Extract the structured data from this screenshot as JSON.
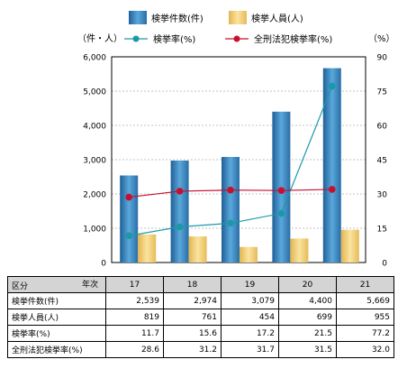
{
  "chart_data": {
    "type": "bar+line",
    "categories": [
      "17",
      "18",
      "19",
      "20",
      "21"
    ],
    "series": [
      {
        "name": "検挙件数(件)",
        "kind": "bar",
        "axis": "left",
        "color": "#3f8fc8",
        "values": [
          2539,
          2974,
          3079,
          4400,
          5669
        ]
      },
      {
        "name": "検挙人員(人)",
        "kind": "bar",
        "axis": "left",
        "color": "#f0cf78",
        "values": [
          819,
          761,
          454,
          699,
          955
        ]
      },
      {
        "name": "検挙率(%)",
        "kind": "line",
        "axis": "right",
        "color": "#1a9aa8",
        "values": [
          11.7,
          15.6,
          17.2,
          21.5,
          77.2
        ]
      },
      {
        "name": "全刑法犯検挙率(%)",
        "kind": "line",
        "axis": "right",
        "color": "#c8102e",
        "values": [
          28.6,
          31.2,
          31.7,
          31.5,
          32.0
        ]
      }
    ],
    "left_axis": {
      "unit": "（件・人）",
      "min": 0,
      "max": 6000,
      "ticks": [
        "0",
        "1,000",
        "2,000",
        "3,000",
        "4,000",
        "5,000",
        "6,000"
      ]
    },
    "right_axis": {
      "unit": "（%）",
      "min": 0,
      "max": 90,
      "ticks": [
        "0",
        "15",
        "30",
        "45",
        "60",
        "75",
        "90"
      ]
    },
    "grid": "horizontal-dashed",
    "legend_placement": "top"
  },
  "legend": {
    "cases": "検挙件数(件)",
    "persons": "検挙人員(人)",
    "rate": "検挙率(%)",
    "all_rate": "全刑法犯検挙率(%)"
  },
  "table": {
    "corner_top": "年次",
    "corner_bottom": "区分",
    "years": [
      "17",
      "18",
      "19",
      "20",
      "21"
    ],
    "rows": [
      {
        "label": "検挙件数(件)",
        "values": [
          "2,539",
          "2,974",
          "3,079",
          "4,400",
          "5,669"
        ]
      },
      {
        "label": "検挙人員(人)",
        "values": [
          "819",
          "761",
          "454",
          "699",
          "955"
        ]
      },
      {
        "label": "検挙率(%)",
        "values": [
          "11.7",
          "15.6",
          "17.2",
          "21.5",
          "77.2"
        ]
      },
      {
        "label": "全刑法犯検挙率(%)",
        "values": [
          "28.6",
          "31.2",
          "31.7",
          "31.5",
          "32.0"
        ]
      }
    ]
  }
}
